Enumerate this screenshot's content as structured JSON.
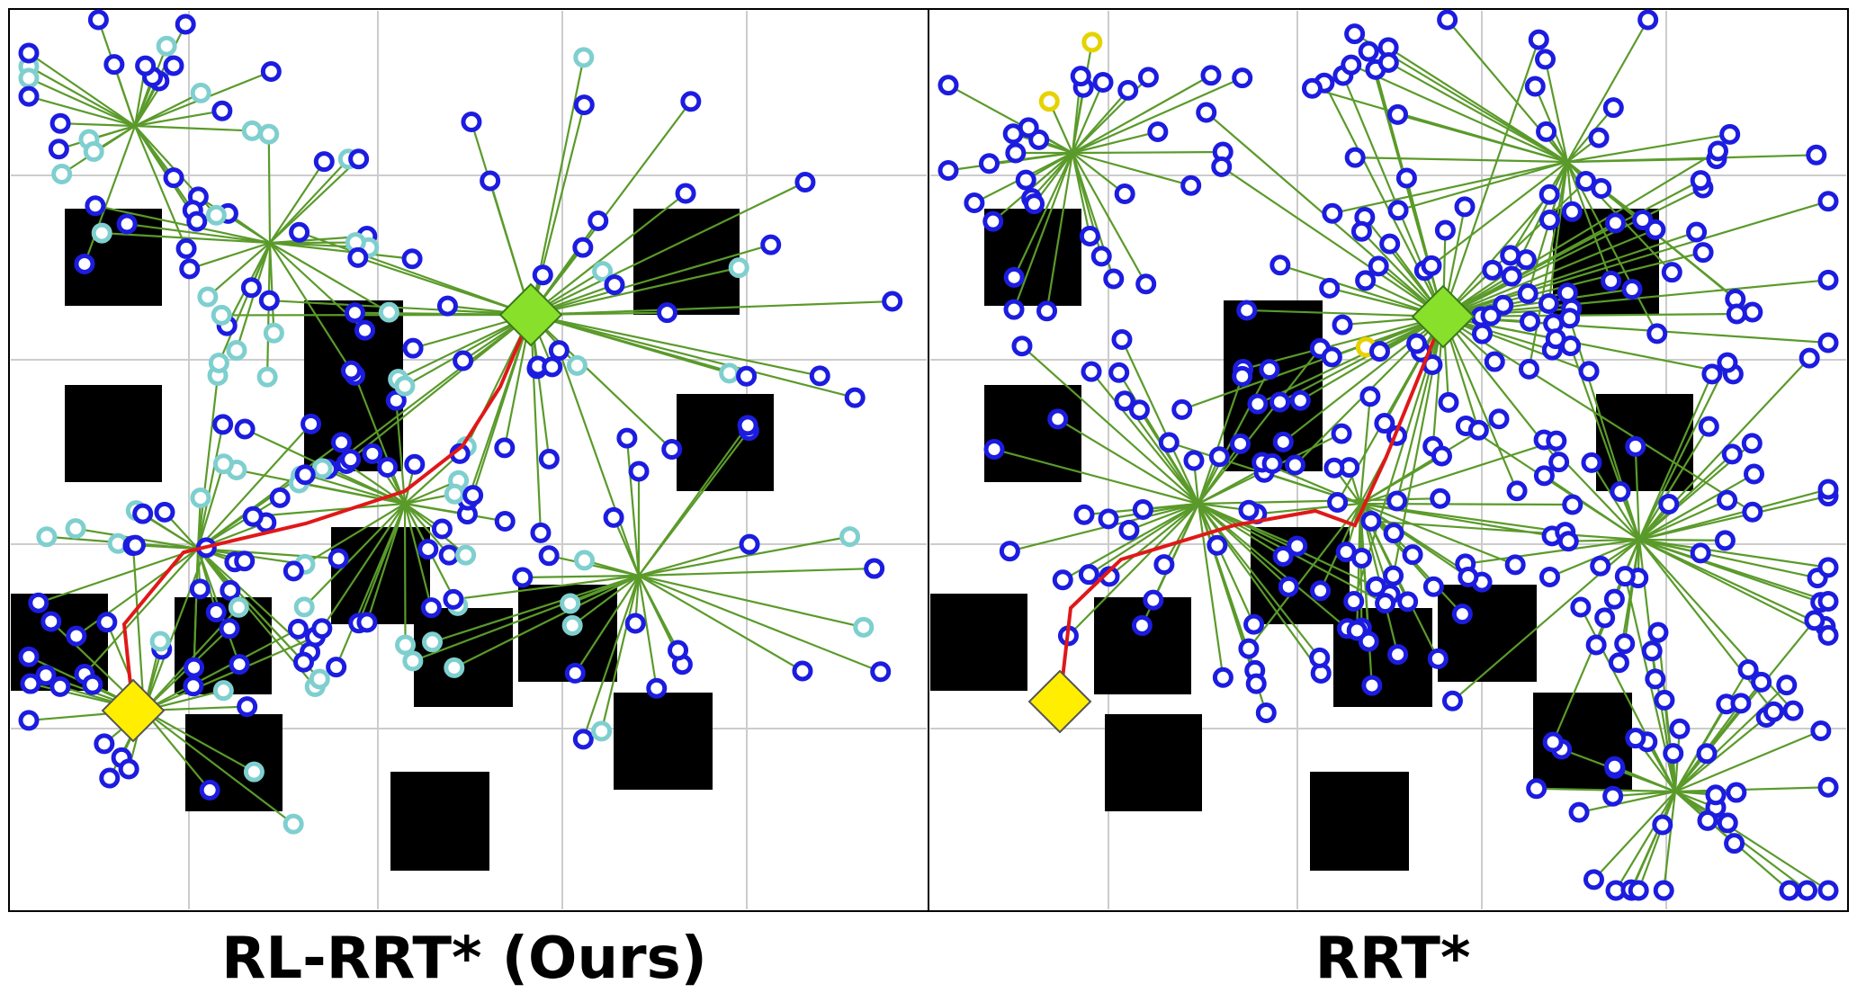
{
  "panels": [
    {
      "caption": "RL-RRT* (Ours)",
      "colors": {
        "edge": "#5a9a2a",
        "node": "#1c1ce0",
        "node_alt": "#7fcfcf",
        "path": "#e01818",
        "start": "#ffee00",
        "goal": "#88e02a",
        "obstacle": "#000000",
        "grid": "#cccccc"
      }
    },
    {
      "caption": "RRT*",
      "colors": {
        "edge": "#5a9a2a",
        "node": "#1c1ce0",
        "node_alt": "#e6d200",
        "path": "#e01818",
        "start": "#ffee00",
        "goal": "#88e02a",
        "obstacle": "#000000",
        "grid": "#cccccc"
      }
    }
  ]
}
